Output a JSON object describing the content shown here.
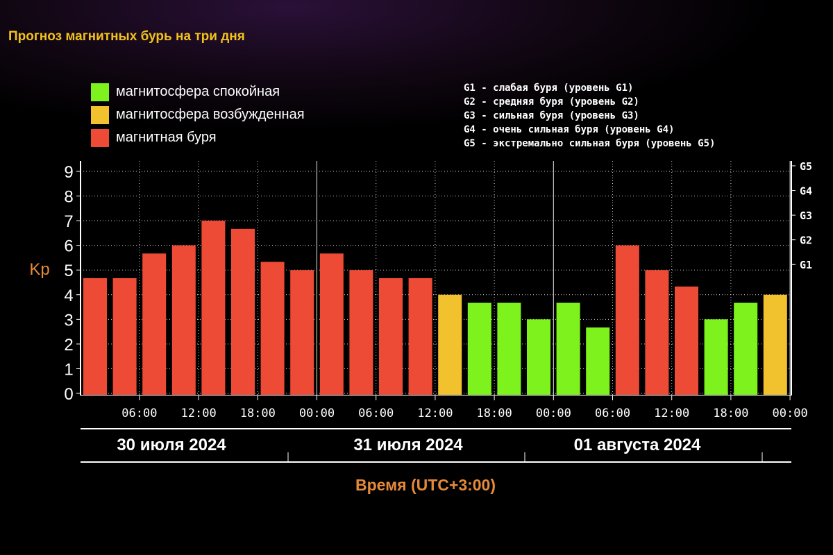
{
  "title": "Прогноз магнитных бурь на три дня",
  "legend": [
    {
      "label": "магнитосфера спокойная",
      "color": "#7ef21c"
    },
    {
      "label": "магнитосфера возбужденная",
      "color": "#f2c12e"
    },
    {
      "label": "магнитная буря",
      "color": "#ee4b36"
    }
  ],
  "g_levels": [
    "G1 - слабая буря (уровень G1)",
    "G2 - средняя буря (уровень G2)",
    "G3 - сильная буря (уровень G3)",
    "G4 - очень сильная буря (уровень G4)",
    "G5 - экстремально сильная буря (уровень G5)"
  ],
  "chart_data": {
    "type": "bar",
    "ylabel": "Kp",
    "xlabel": "Время (UTC+3:00)",
    "ylim": [
      0,
      9
    ],
    "y_ticks": [
      "0",
      "1",
      "2",
      "3",
      "4",
      "5",
      "6",
      "7",
      "8",
      "9"
    ],
    "g_scale": [
      {
        "label": "G1",
        "kp": 5
      },
      {
        "label": "G2",
        "kp": 6
      },
      {
        "label": "G3",
        "kp": 7
      },
      {
        "label": "G4",
        "kp": 8
      },
      {
        "label": "G5",
        "kp": 9
      }
    ],
    "x_ticks": [
      "06:00",
      "12:00",
      "18:00",
      "00:00",
      "06:00",
      "12:00",
      "18:00",
      "00:00",
      "06:00",
      "12:00",
      "18:00",
      "00:00"
    ],
    "days": [
      "30 июля 2024",
      "31 июля 2024",
      "01 августа 2024"
    ],
    "grid": true,
    "legend_position": "top-left",
    "values": [
      4.67,
      4.67,
      5.67,
      6,
      7,
      6.67,
      5.33,
      5,
      5.67,
      5,
      4.67,
      4.67,
      4,
      3.67,
      3.67,
      3,
      3.67,
      2.67,
      6,
      5,
      4.33,
      3,
      3.67,
      4
    ],
    "levels": [
      "storm",
      "storm",
      "storm",
      "storm",
      "storm",
      "storm",
      "storm",
      "storm",
      "storm",
      "storm",
      "storm",
      "storm",
      "active",
      "quiet",
      "quiet",
      "quiet",
      "quiet",
      "quiet",
      "storm",
      "storm",
      "storm",
      "quiet",
      "quiet",
      "active"
    ],
    "colors": {
      "quiet": "#7ef21c",
      "active": "#f2c12e",
      "storm": "#ee4b36"
    }
  }
}
